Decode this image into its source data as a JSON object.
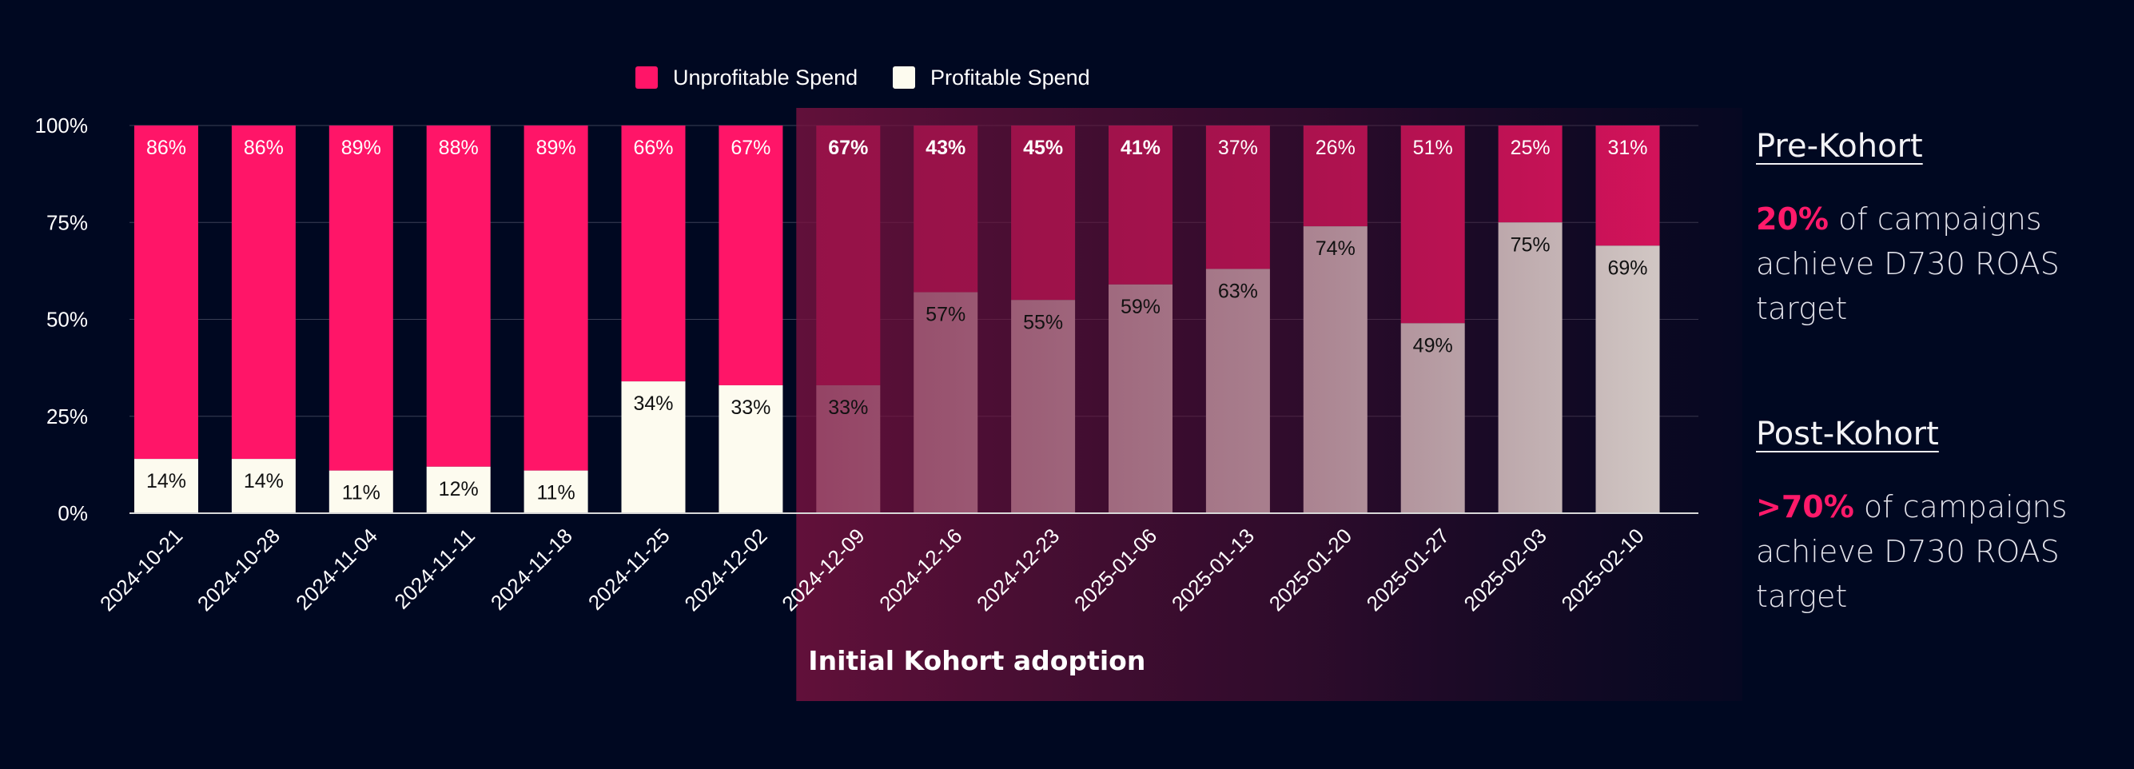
{
  "chart_data": {
    "type": "bar",
    "stacked": true,
    "categories": [
      "2024-10-21",
      "2024-10-28",
      "2024-11-04",
      "2024-11-11",
      "2024-11-18",
      "2024-11-25",
      "2024-12-02",
      "2024-12-09",
      "2024-12-16",
      "2024-12-23",
      "2025-01-06",
      "2025-01-13",
      "2025-01-20",
      "2025-01-27",
      "2025-02-03",
      "2025-02-10"
    ],
    "series": [
      {
        "name": "Profitable Spend",
        "color": "#fdfbef",
        "values": [
          14,
          14,
          11,
          12,
          11,
          34,
          33,
          33,
          57,
          55,
          59,
          63,
          74,
          49,
          75,
          69
        ],
        "labels": [
          "14%",
          "14%",
          "11%",
          "12%",
          "11%",
          "34%",
          "33%",
          "33%",
          "57%",
          "55%",
          "59%",
          "63%",
          "74%",
          "49%",
          "75%",
          "69%"
        ]
      },
      {
        "name": "Unprofitable Spend",
        "color": "#ff1568",
        "values": [
          86,
          86,
          89,
          88,
          89,
          66,
          67,
          67,
          43,
          45,
          41,
          37,
          26,
          51,
          25,
          31
        ],
        "labels": [
          "86%",
          "86%",
          "89%",
          "88%",
          "89%",
          "66%",
          "67%",
          "67%",
          "43%",
          "45%",
          "41%",
          "37%",
          "26%",
          "51%",
          "25%",
          "31%"
        ]
      }
    ],
    "legend": [
      "Unprofitable Spend",
      "Profitable Spend"
    ],
    "legend_position": "top-center",
    "yticks": [
      "0%",
      "25%",
      "50%",
      "75%",
      "100%"
    ],
    "ylim": [
      0,
      100
    ],
    "grid": true,
    "highlight": {
      "label": "Initial Kohort adoption",
      "from_category": "2024-12-09",
      "color": "#7a1240"
    }
  },
  "sidebar": {
    "pre": {
      "heading": "Pre-Kohort",
      "highlight": "20%",
      "text": " of campaigns achieve D730 ROAS target"
    },
    "post": {
      "heading": "Post-Kohort",
      "highlight": ">70%",
      "text": " of campaigns achieve D730 ROAS target"
    }
  }
}
